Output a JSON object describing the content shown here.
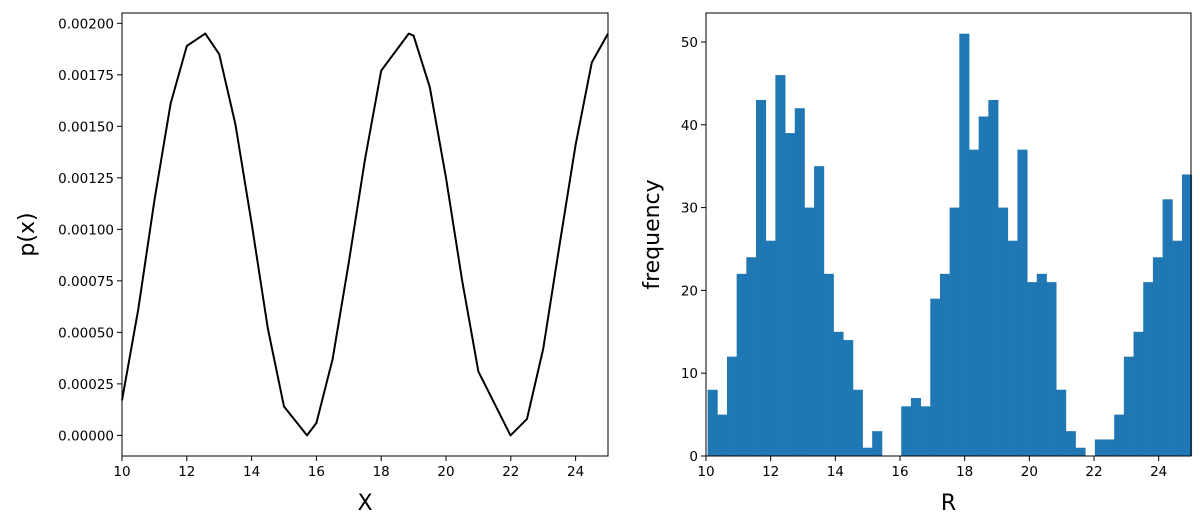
{
  "chart_data": [
    {
      "type": "line",
      "xlabel": "X",
      "ylabel": "p(x)",
      "xlim": [
        10,
        25
      ],
      "ylim": [
        -0.0001,
        0.00205
      ],
      "xticks": [
        10,
        12,
        14,
        16,
        18,
        20,
        22,
        24
      ],
      "xtick_labels": [
        "10",
        "12",
        "14",
        "16",
        "18",
        "20",
        "22",
        "24"
      ],
      "yticks": [
        0,
        0.00025,
        0.0005,
        0.00075,
        0.001,
        0.00125,
        0.0015,
        0.00175,
        0.002
      ],
      "ytick_labels": [
        "0.00000",
        "0.00025",
        "0.00050",
        "0.00075",
        "0.00100",
        "0.00125",
        "0.00150",
        "0.00175",
        "0.00200"
      ],
      "grid": false,
      "series": [
        {
          "color": "#000000",
          "x": [
            10,
            10.5,
            11,
            11.5,
            12,
            12.57,
            13,
            13.5,
            14,
            14.5,
            15,
            15.71,
            16,
            16.5,
            17,
            17.5,
            18,
            18.85,
            19,
            19.5,
            20,
            20.5,
            21,
            21.99,
            22.5,
            23,
            23.5,
            24,
            24.5,
            25
          ],
          "y": [
            0.00017,
            0.00061,
            0.00114,
            0.00161,
            0.00189,
            0.00195,
            0.00185,
            0.00151,
            0.00103,
            0.00052,
            0.00014,
            0.0,
            6e-05,
            0.00037,
            0.00084,
            0.00134,
            0.00177,
            0.00195,
            0.00194,
            0.00169,
            0.00125,
            0.00075,
            0.00031,
            0.0,
            8e-05,
            0.00042,
            0.00092,
            0.00141,
            0.00181,
            0.00195
          ]
        }
      ]
    },
    {
      "type": "bar",
      "xlabel": "R",
      "ylabel": "frequency",
      "xlim": [
        10,
        25
      ],
      "ylim": [
        0,
        53.5
      ],
      "xticks": [
        10,
        12,
        14,
        16,
        18,
        20,
        22,
        24
      ],
      "xtick_labels": [
        "10",
        "12",
        "14",
        "16",
        "18",
        "20",
        "22",
        "24"
      ],
      "yticks": [
        0,
        10,
        20,
        30,
        40,
        50
      ],
      "ytick_labels": [
        "0",
        "10",
        "20",
        "30",
        "40",
        "50"
      ],
      "grid": false,
      "bin_start": 10.05,
      "bin_width": 0.2994,
      "color": "#1f77b4",
      "values": [
        8,
        5,
        12,
        22,
        24,
        43,
        26,
        46,
        39,
        42,
        30,
        35,
        22,
        15,
        14,
        8,
        1,
        3,
        0,
        0,
        6,
        7,
        6,
        19,
        22,
        30,
        51,
        37,
        41,
        43,
        30,
        26,
        37,
        21,
        22,
        21,
        8,
        3,
        1,
        0,
        2,
        2,
        5,
        12,
        15,
        21,
        24,
        31,
        26,
        34
      ]
    }
  ]
}
